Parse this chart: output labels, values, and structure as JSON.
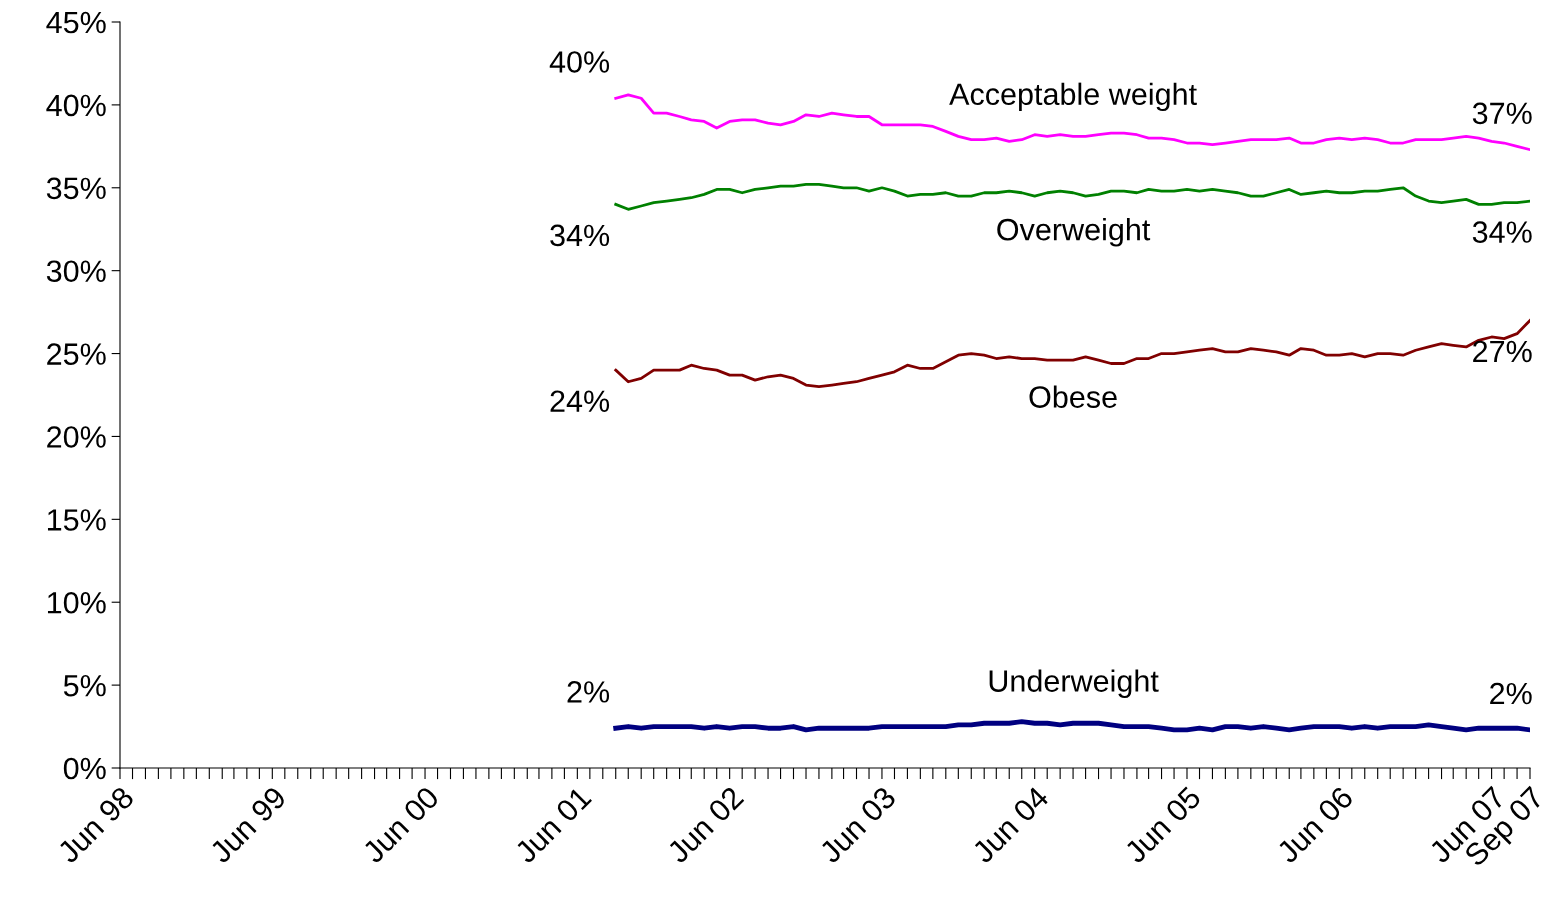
{
  "chart_data": {
    "type": "line",
    "grid": false,
    "legend": false,
    "marker": "none",
    "line_style": "solid",
    "x": [
      "2001-09",
      "2001-10",
      "2001-11",
      "2001-12",
      "2002-01",
      "2002-02",
      "2002-03",
      "2002-04",
      "2002-05",
      "2002-06",
      "2002-07",
      "2002-08",
      "2002-09",
      "2002-10",
      "2002-11",
      "2002-12",
      "2003-01",
      "2003-02",
      "2003-03",
      "2003-04",
      "2003-05",
      "2003-06",
      "2003-07",
      "2003-08",
      "2003-09",
      "2003-10",
      "2003-11",
      "2003-12",
      "2004-01",
      "2004-02",
      "2004-03",
      "2004-04",
      "2004-05",
      "2004-06",
      "2004-07",
      "2004-08",
      "2004-09",
      "2004-10",
      "2004-11",
      "2004-12",
      "2005-01",
      "2005-02",
      "2005-03",
      "2005-04",
      "2005-05",
      "2005-06",
      "2005-07",
      "2005-08",
      "2005-09",
      "2005-10",
      "2005-11",
      "2005-12",
      "2006-01",
      "2006-02",
      "2006-03",
      "2006-04",
      "2006-05",
      "2006-06",
      "2006-07",
      "2006-08",
      "2006-09",
      "2006-10",
      "2006-11",
      "2006-12",
      "2007-01",
      "2007-02",
      "2007-03",
      "2007-04",
      "2007-05",
      "2007-06",
      "2007-07",
      "2007-08",
      "2007-09"
    ],
    "series": [
      {
        "name": "Acceptable weight",
        "color": "#ff00ff",
        "values": [
          40.4,
          40.6,
          40.4,
          39.5,
          39.5,
          39.3,
          39.1,
          39.0,
          38.6,
          39.0,
          39.1,
          39.1,
          38.9,
          38.8,
          39.0,
          39.4,
          39.3,
          39.5,
          39.4,
          39.3,
          39.3,
          38.8,
          38.8,
          38.8,
          38.8,
          38.7,
          38.4,
          38.1,
          37.9,
          37.9,
          38.0,
          37.8,
          37.9,
          38.2,
          38.1,
          38.2,
          38.1,
          38.1,
          38.2,
          38.3,
          38.3,
          38.2,
          38.0,
          38.0,
          37.9,
          37.7,
          37.7,
          37.6,
          37.7,
          37.8,
          37.9,
          37.9,
          37.9,
          38.0,
          37.7,
          37.7,
          37.9,
          38.0,
          37.9,
          38.0,
          37.9,
          37.7,
          37.7,
          37.9,
          37.9,
          37.9,
          38.0,
          38.1,
          38.0,
          37.8,
          37.7,
          37.5,
          37.3
        ],
        "value_labels": [
          "40%",
          null,
          null,
          null,
          null,
          null,
          null,
          null,
          null,
          null,
          null,
          null,
          null,
          null,
          null,
          null,
          null,
          null,
          null,
          null,
          null,
          null,
          null,
          null,
          null,
          null,
          null,
          null,
          null,
          null,
          null,
          null,
          null,
          null,
          null,
          null,
          null,
          null,
          null,
          null,
          null,
          null,
          null,
          null,
          null,
          null,
          null,
          null,
          null,
          null,
          null,
          null,
          null,
          null,
          null,
          null,
          null,
          null,
          null,
          null,
          null,
          null,
          null,
          null,
          null,
          null,
          null,
          null,
          null,
          null,
          null,
          null,
          "37%"
        ]
      },
      {
        "name": "Overweight",
        "color": "#008000",
        "values": [
          34.0,
          33.7,
          33.9,
          34.1,
          34.2,
          34.3,
          34.4,
          34.6,
          34.9,
          34.9,
          34.7,
          34.9,
          35.0,
          35.1,
          35.1,
          35.2,
          35.2,
          35.1,
          35.0,
          35.0,
          34.8,
          35.0,
          34.8,
          34.5,
          34.6,
          34.6,
          34.7,
          34.5,
          34.5,
          34.7,
          34.7,
          34.8,
          34.7,
          34.5,
          34.7,
          34.8,
          34.7,
          34.5,
          34.6,
          34.8,
          34.8,
          34.7,
          34.9,
          34.8,
          34.8,
          34.9,
          34.8,
          34.9,
          34.8,
          34.7,
          34.5,
          34.5,
          34.7,
          34.9,
          34.6,
          34.7,
          34.8,
          34.7,
          34.7,
          34.8,
          34.8,
          34.9,
          35.0,
          34.5,
          34.2,
          34.1,
          34.2,
          34.3,
          34.0,
          34.0,
          34.1,
          34.1,
          34.2
        ],
        "value_labels": [
          "34%",
          null,
          null,
          null,
          null,
          null,
          null,
          null,
          null,
          null,
          null,
          null,
          null,
          null,
          null,
          null,
          null,
          null,
          null,
          null,
          null,
          null,
          null,
          null,
          null,
          null,
          null,
          null,
          null,
          null,
          null,
          null,
          null,
          null,
          null,
          null,
          null,
          null,
          null,
          null,
          null,
          null,
          null,
          null,
          null,
          null,
          null,
          null,
          null,
          null,
          null,
          null,
          null,
          null,
          null,
          null,
          null,
          null,
          null,
          null,
          null,
          null,
          null,
          null,
          null,
          null,
          null,
          null,
          null,
          null,
          null,
          null,
          "34%"
        ]
      },
      {
        "name": "Obese",
        "color": "#800000",
        "values": [
          24.0,
          23.3,
          23.5,
          24.0,
          24.0,
          24.0,
          24.3,
          24.1,
          24.0,
          23.7,
          23.7,
          23.4,
          23.6,
          23.7,
          23.5,
          23.1,
          23.0,
          23.1,
          23.2,
          23.3,
          23.5,
          23.7,
          23.9,
          24.3,
          24.1,
          24.1,
          24.5,
          24.9,
          25.0,
          24.9,
          24.7,
          24.8,
          24.7,
          24.7,
          24.6,
          24.6,
          24.6,
          24.8,
          24.6,
          24.4,
          24.4,
          24.7,
          24.7,
          25.0,
          25.0,
          25.1,
          25.2,
          25.3,
          25.1,
          25.1,
          25.3,
          25.2,
          25.1,
          24.9,
          25.3,
          25.2,
          24.9,
          24.9,
          25.0,
          24.8,
          25.0,
          25.0,
          24.9,
          25.2,
          25.4,
          25.6,
          25.5,
          25.4,
          25.8,
          26.0,
          25.9,
          26.2,
          27.0
        ],
        "value_labels": [
          "24%",
          null,
          null,
          null,
          null,
          null,
          null,
          null,
          null,
          null,
          null,
          null,
          null,
          null,
          null,
          null,
          null,
          null,
          null,
          null,
          null,
          null,
          null,
          null,
          null,
          null,
          null,
          null,
          null,
          null,
          null,
          null,
          null,
          null,
          null,
          null,
          null,
          null,
          null,
          null,
          null,
          null,
          null,
          null,
          null,
          null,
          null,
          null,
          null,
          null,
          null,
          null,
          null,
          null,
          null,
          null,
          null,
          null,
          null,
          null,
          null,
          null,
          null,
          null,
          null,
          null,
          null,
          null,
          null,
          null,
          null,
          null,
          "27%"
        ]
      },
      {
        "name": "Underweight",
        "color": "#000080",
        "values": [
          2.4,
          2.5,
          2.4,
          2.5,
          2.5,
          2.5,
          2.5,
          2.4,
          2.5,
          2.4,
          2.5,
          2.5,
          2.4,
          2.4,
          2.5,
          2.3,
          2.4,
          2.4,
          2.4,
          2.4,
          2.4,
          2.5,
          2.5,
          2.5,
          2.5,
          2.5,
          2.5,
          2.6,
          2.6,
          2.7,
          2.7,
          2.7,
          2.8,
          2.7,
          2.7,
          2.6,
          2.7,
          2.7,
          2.7,
          2.6,
          2.5,
          2.5,
          2.5,
          2.4,
          2.3,
          2.3,
          2.4,
          2.3,
          2.5,
          2.5,
          2.4,
          2.5,
          2.4,
          2.3,
          2.4,
          2.5,
          2.5,
          2.5,
          2.4,
          2.5,
          2.4,
          2.5,
          2.5,
          2.5,
          2.6,
          2.5,
          2.4,
          2.3,
          2.4,
          2.4,
          2.4,
          2.4,
          2.3
        ],
        "value_labels": [
          "2%",
          null,
          null,
          null,
          null,
          null,
          null,
          null,
          null,
          null,
          null,
          null,
          null,
          null,
          null,
          null,
          null,
          null,
          null,
          null,
          null,
          null,
          null,
          null,
          null,
          null,
          null,
          null,
          null,
          null,
          null,
          null,
          null,
          null,
          null,
          null,
          null,
          null,
          null,
          null,
          null,
          null,
          null,
          null,
          null,
          null,
          null,
          null,
          null,
          null,
          null,
          null,
          null,
          null,
          null,
          null,
          null,
          null,
          null,
          null,
          null,
          null,
          null,
          null,
          null,
          null,
          null,
          null,
          null,
          null,
          null,
          null,
          "2%"
        ]
      }
    ],
    "ylim": [
      0,
      45
    ],
    "yticks": [
      {
        "value": 0,
        "label": "0%"
      },
      {
        "value": 5,
        "label": "5%"
      },
      {
        "value": 10,
        "label": "10%"
      },
      {
        "value": 15,
        "label": "15%"
      },
      {
        "value": 20,
        "label": "20%"
      },
      {
        "value": 25,
        "label": "25%"
      },
      {
        "value": 30,
        "label": "30%"
      },
      {
        "value": 35,
        "label": "35%"
      },
      {
        "value": 40,
        "label": "40%"
      },
      {
        "value": 45,
        "label": "45%"
      }
    ],
    "xlim": [
      "1998-06",
      "2007-09"
    ],
    "xticks": [
      {
        "value": "1998-06",
        "label": "Jun 98"
      },
      {
        "value": "1998-07",
        "label": null
      },
      {
        "value": "1998-08",
        "label": null
      },
      {
        "value": "1998-09",
        "label": null
      },
      {
        "value": "1998-10",
        "label": null
      },
      {
        "value": "1998-11",
        "label": null
      },
      {
        "value": "1998-12",
        "label": null
      },
      {
        "value": "1999-01",
        "label": null
      },
      {
        "value": "1999-02",
        "label": null
      },
      {
        "value": "1999-03",
        "label": null
      },
      {
        "value": "1999-04",
        "label": null
      },
      {
        "value": "1999-05",
        "label": null
      },
      {
        "value": "1999-06",
        "label": "Jun 99"
      },
      {
        "value": "1999-07",
        "label": null
      },
      {
        "value": "1999-08",
        "label": null
      },
      {
        "value": "1999-09",
        "label": null
      },
      {
        "value": "1999-10",
        "label": null
      },
      {
        "value": "1999-11",
        "label": null
      },
      {
        "value": "1999-12",
        "label": null
      },
      {
        "value": "2000-01",
        "label": null
      },
      {
        "value": "2000-02",
        "label": null
      },
      {
        "value": "2000-03",
        "label": null
      },
      {
        "value": "2000-04",
        "label": null
      },
      {
        "value": "2000-05",
        "label": null
      },
      {
        "value": "2000-06",
        "label": "Jun 00"
      },
      {
        "value": "2000-07",
        "label": null
      },
      {
        "value": "2000-08",
        "label": null
      },
      {
        "value": "2000-09",
        "label": null
      },
      {
        "value": "2000-10",
        "label": null
      },
      {
        "value": "2000-11",
        "label": null
      },
      {
        "value": "2000-12",
        "label": null
      },
      {
        "value": "2001-01",
        "label": null
      },
      {
        "value": "2001-02",
        "label": null
      },
      {
        "value": "2001-03",
        "label": null
      },
      {
        "value": "2001-04",
        "label": null
      },
      {
        "value": "2001-05",
        "label": null
      },
      {
        "value": "2001-06",
        "label": "Jun 01"
      },
      {
        "value": "2001-07",
        "label": null
      },
      {
        "value": "2001-08",
        "label": null
      },
      {
        "value": "2001-09",
        "label": null
      },
      {
        "value": "2001-10",
        "label": null
      },
      {
        "value": "2001-11",
        "label": null
      },
      {
        "value": "2001-12",
        "label": null
      },
      {
        "value": "2002-01",
        "label": null
      },
      {
        "value": "2002-02",
        "label": null
      },
      {
        "value": "2002-03",
        "label": null
      },
      {
        "value": "2002-04",
        "label": null
      },
      {
        "value": "2002-05",
        "label": null
      },
      {
        "value": "2002-06",
        "label": "Jun 02"
      },
      {
        "value": "2002-07",
        "label": null
      },
      {
        "value": "2002-08",
        "label": null
      },
      {
        "value": "2002-09",
        "label": null
      },
      {
        "value": "2002-10",
        "label": null
      },
      {
        "value": "2002-11",
        "label": null
      },
      {
        "value": "2002-12",
        "label": null
      },
      {
        "value": "2003-01",
        "label": null
      },
      {
        "value": "2003-02",
        "label": null
      },
      {
        "value": "2003-03",
        "label": null
      },
      {
        "value": "2003-04",
        "label": null
      },
      {
        "value": "2003-05",
        "label": null
      },
      {
        "value": "2003-06",
        "label": "Jun 03"
      },
      {
        "value": "2003-07",
        "label": null
      },
      {
        "value": "2003-08",
        "label": null
      },
      {
        "value": "2003-09",
        "label": null
      },
      {
        "value": "2003-10",
        "label": null
      },
      {
        "value": "2003-11",
        "label": null
      },
      {
        "value": "2003-12",
        "label": null
      },
      {
        "value": "2004-01",
        "label": null
      },
      {
        "value": "2004-02",
        "label": null
      },
      {
        "value": "2004-03",
        "label": null
      },
      {
        "value": "2004-04",
        "label": null
      },
      {
        "value": "2004-05",
        "label": null
      },
      {
        "value": "2004-06",
        "label": "Jun 04"
      },
      {
        "value": "2004-07",
        "label": null
      },
      {
        "value": "2004-08",
        "label": null
      },
      {
        "value": "2004-09",
        "label": null
      },
      {
        "value": "2004-10",
        "label": null
      },
      {
        "value": "2004-11",
        "label": null
      },
      {
        "value": "2004-12",
        "label": null
      },
      {
        "value": "2005-01",
        "label": null
      },
      {
        "value": "2005-02",
        "label": null
      },
      {
        "value": "2005-03",
        "label": null
      },
      {
        "value": "2005-04",
        "label": null
      },
      {
        "value": "2005-05",
        "label": null
      },
      {
        "value": "2005-06",
        "label": "Jun 05"
      },
      {
        "value": "2005-07",
        "label": null
      },
      {
        "value": "2005-08",
        "label": null
      },
      {
        "value": "2005-09",
        "label": null
      },
      {
        "value": "2005-10",
        "label": null
      },
      {
        "value": "2005-11",
        "label": null
      },
      {
        "value": "2005-12",
        "label": null
      },
      {
        "value": "2006-01",
        "label": null
      },
      {
        "value": "2006-02",
        "label": null
      },
      {
        "value": "2006-03",
        "label": null
      },
      {
        "value": "2006-04",
        "label": null
      },
      {
        "value": "2006-05",
        "label": null
      },
      {
        "value": "2006-06",
        "label": "Jun 06"
      },
      {
        "value": "2006-07",
        "label": null
      },
      {
        "value": "2006-08",
        "label": null
      },
      {
        "value": "2006-09",
        "label": null
      },
      {
        "value": "2006-10",
        "label": null
      },
      {
        "value": "2006-11",
        "label": null
      },
      {
        "value": "2006-12",
        "label": null
      },
      {
        "value": "2007-01",
        "label": null
      },
      {
        "value": "2007-02",
        "label": null
      },
      {
        "value": "2007-03",
        "label": null
      },
      {
        "value": "2007-04",
        "label": null
      },
      {
        "value": "2007-05",
        "label": null
      },
      {
        "value": "2007-06",
        "label": "Jun 07"
      },
      {
        "value": "2007-07",
        "label": null
      },
      {
        "value": "2007-08",
        "label": null
      },
      {
        "value": "2007-09",
        "label": "Sep 07"
      }
    ]
  }
}
